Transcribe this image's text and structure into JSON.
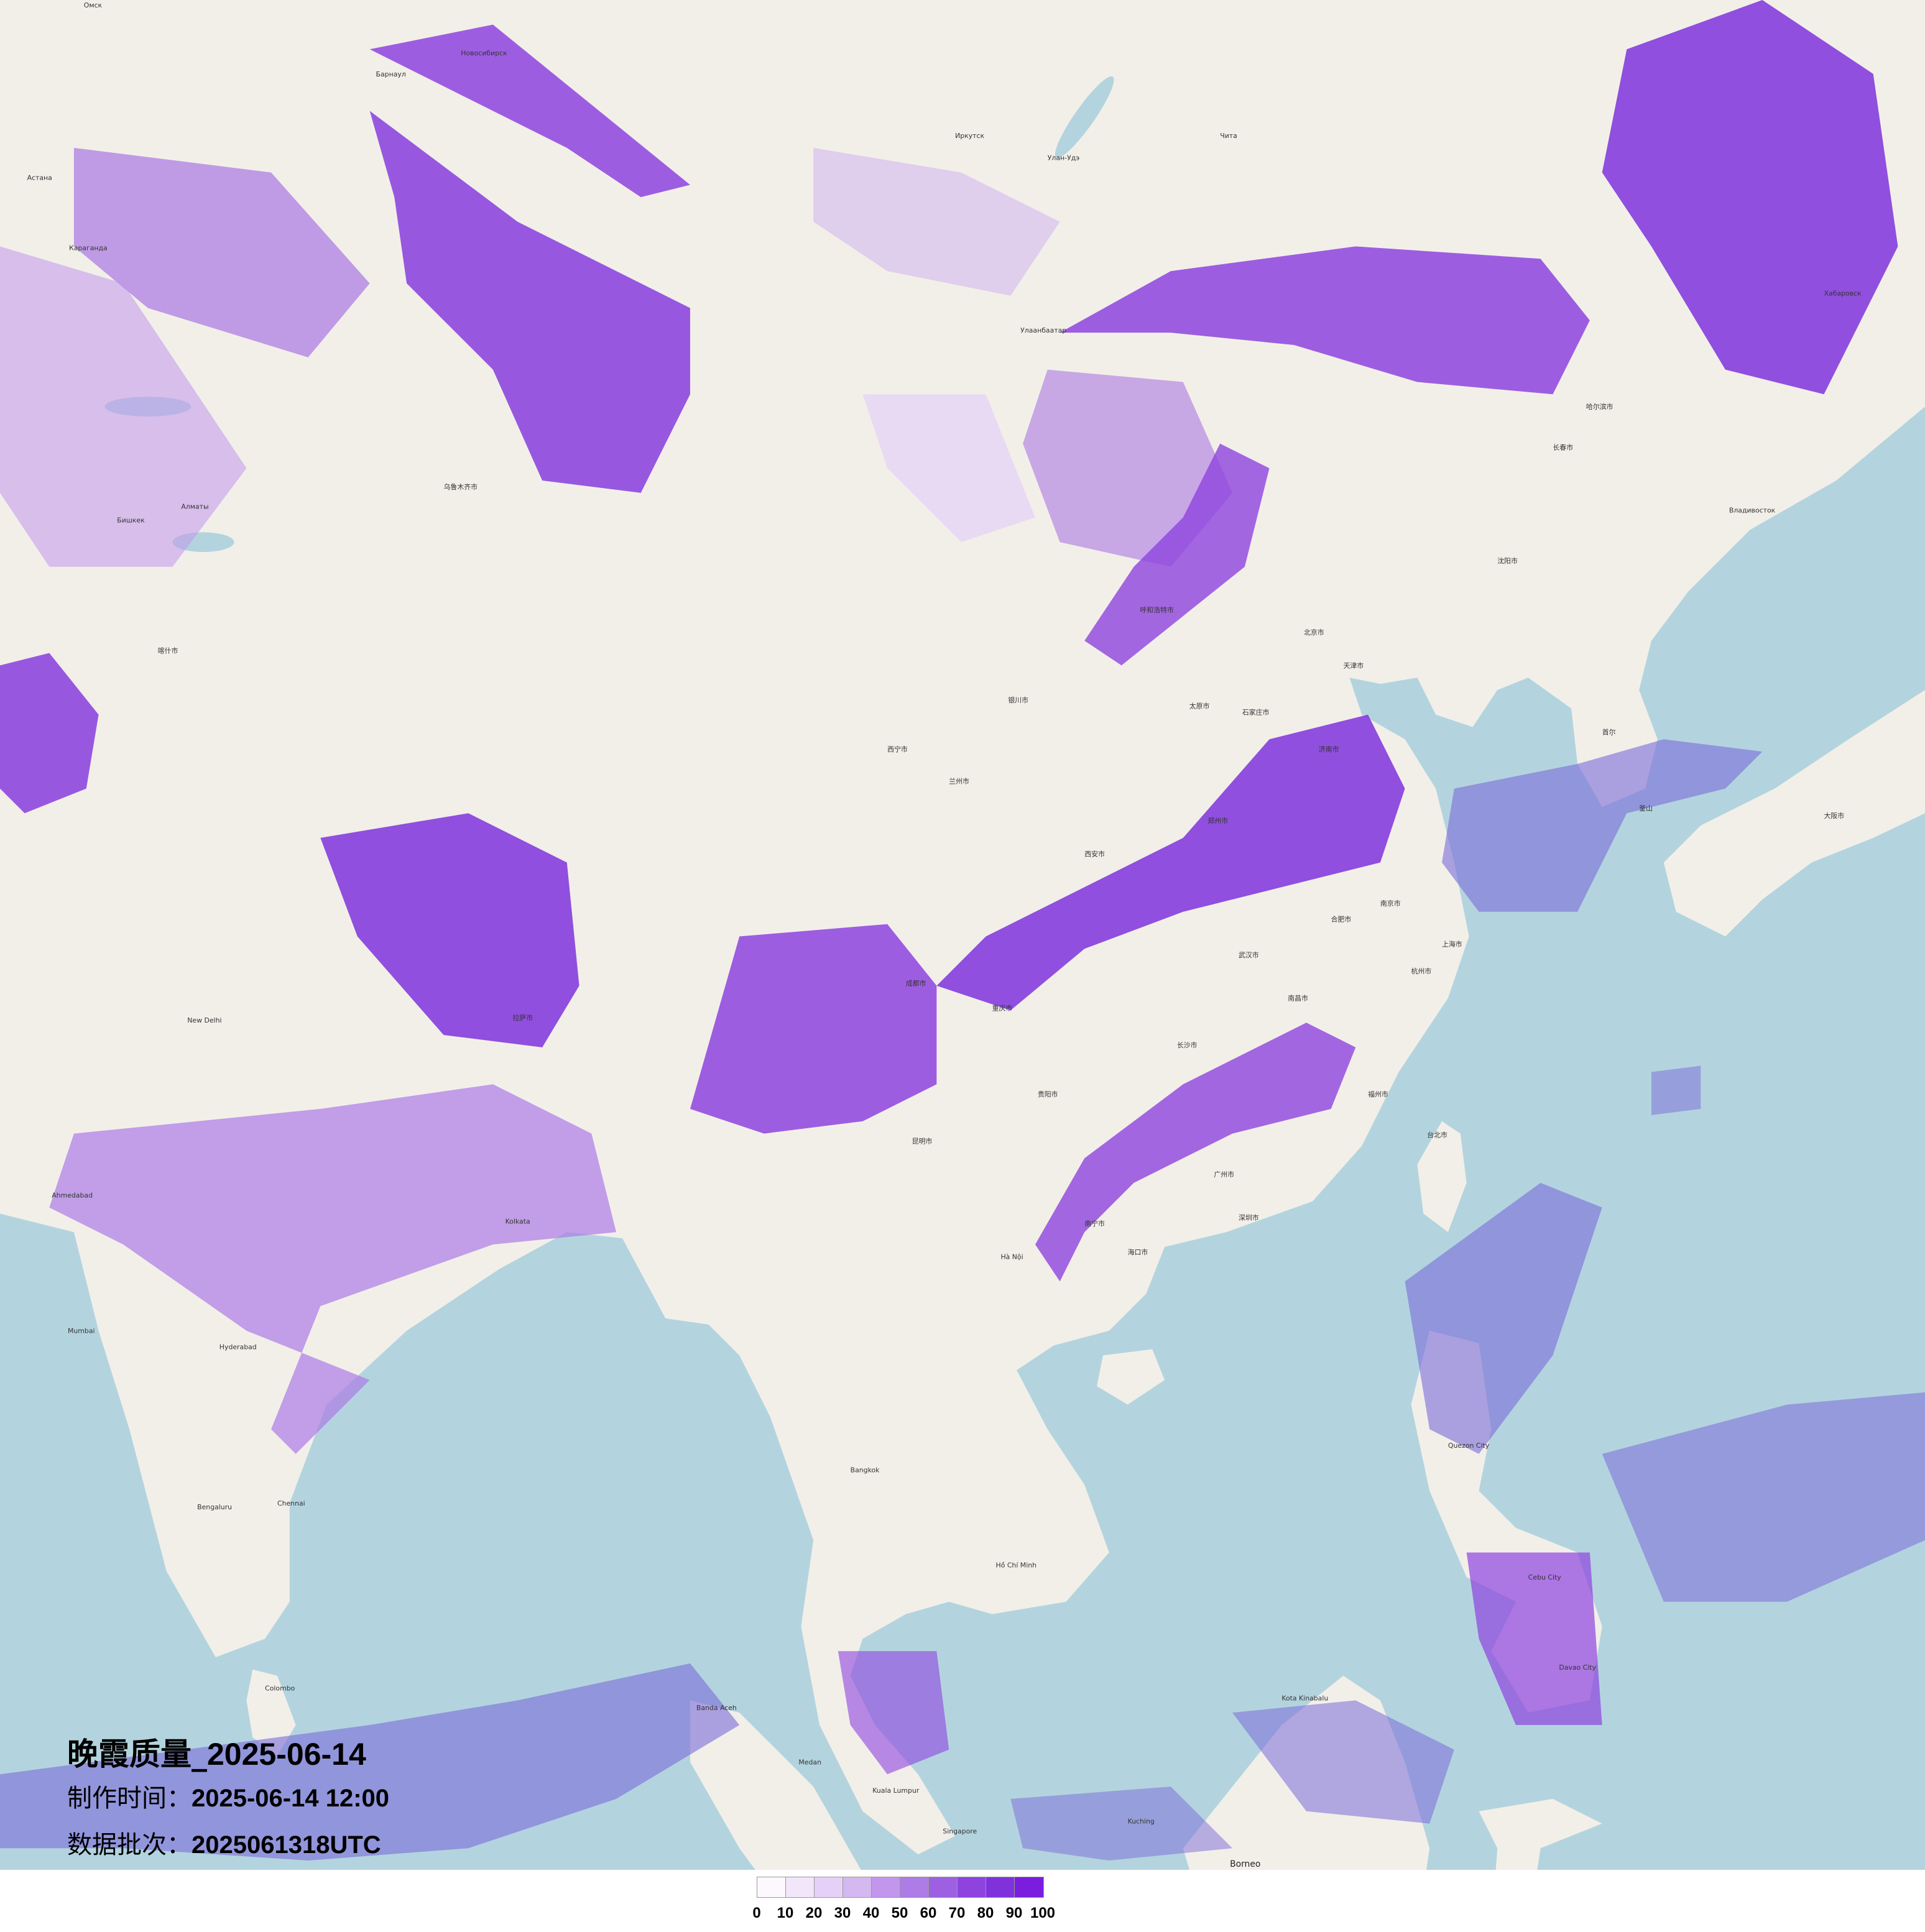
{
  "title": {
    "name": "晚霞质量_",
    "date": "2025-06-14"
  },
  "meta": [
    {
      "key": "制作时间：",
      "value": "2025-06-14 12:00"
    },
    {
      "key": "数据批次：",
      "value": "2025061318UTC"
    }
  ],
  "legend": {
    "ticks": [
      "0",
      "10",
      "20",
      "30",
      "40",
      "50",
      "60",
      "70",
      "80",
      "90",
      "100"
    ],
    "colors": [
      "#fdf8fd",
      "#f1e6fa",
      "#e5d1f8",
      "#d4b8f0",
      "#c196ec",
      "#ad7ce6",
      "#9d60e2",
      "#8e43df",
      "#7f32dc",
      "#7a1ddf"
    ]
  },
  "map_colors": {
    "land": "#f2efe9",
    "sea": "#b3d4de",
    "high": "#7a1ddf"
  },
  "places": [
    "Омск",
    "Астана",
    "Караганда",
    "Алматы",
    "Бишкек",
    "Новосибирск",
    "Барнаул",
    "Иркутск",
    "Улан-Удэ",
    "Чита",
    "Улаанбаатар",
    "Хабаровск",
    "Владивосток",
    "哈尔滨市",
    "长春市",
    "沈阳市",
    "北京市",
    "天津市",
    "石家庄市",
    "太原市",
    "济南市",
    "郑州市",
    "西安市",
    "兰州市",
    "西宁市",
    "银川市",
    "呼和浩特市",
    "武汉市",
    "南京市",
    "上海市",
    "杭州市",
    "合肥市",
    "长沙市",
    "南昌市",
    "福州市",
    "广州市",
    "深圳市",
    "南宁市",
    "海口市",
    "贵阳市",
    "昆明市",
    "成都市",
    "重庆市",
    "拉萨市",
    "乌鲁木齐市",
    "喀什市",
    "台北市",
    "首尔",
    "釜山",
    "大阪市",
    "New Delhi",
    "Kolkata",
    "Mumbai",
    "Hyderabad",
    "Chennai",
    "Bengaluru",
    "Ahmedabad",
    "Hà Nội",
    "Bangkok",
    "Hồ Chí Minh",
    "Kuala Lumpur",
    "Singapore",
    "Quezon City",
    "Cebu City",
    "Davao City",
    "Banda Aceh",
    "Kota Kinabalu",
    "Kuching",
    "Borneo",
    "Medan",
    "Colombo"
  ]
}
